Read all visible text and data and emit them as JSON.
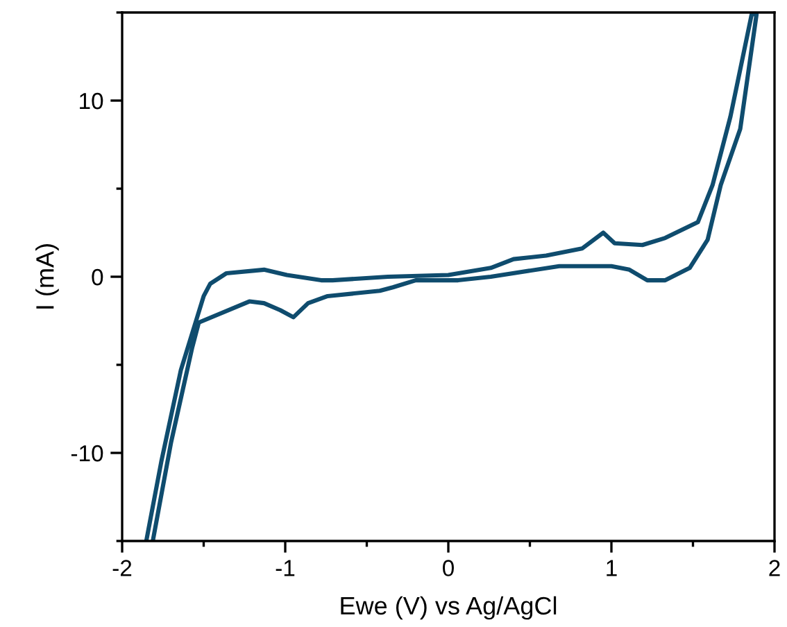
{
  "chart_data": {
    "type": "line",
    "xlabel": "Ewe (V) vs Ag/AgCl",
    "ylabel": "I (mA)",
    "xlim": [
      -2,
      2
    ],
    "ylim": [
      -15,
      15
    ],
    "xticks": [
      -2,
      {
        "value": -1.5,
        "label": null
      },
      -1,
      {
        "value": -0.5,
        "label": null
      },
      0,
      {
        "value": 0.5,
        "label": null
      },
      1,
      {
        "value": 1.5,
        "label": null
      },
      2
    ],
    "yticks": [
      {
        "value": -15,
        "label": null
      },
      -10,
      {
        "value": -5,
        "label": null
      },
      0,
      {
        "value": 5,
        "label": null
      },
      10,
      {
        "value": 15,
        "label": null
      }
    ],
    "grid": false,
    "marker": "none",
    "line_style": "solid",
    "series": [
      {
        "color": "#0f4c6e",
        "x": [
          -1.85,
          -1.76,
          -1.64,
          -1.5,
          -1.46,
          -1.36,
          -1.13,
          -0.99,
          -0.78,
          -0.71,
          -0.37,
          0.0,
          0.26,
          0.4,
          0.6,
          0.82,
          0.95,
          1.02,
          1.19,
          1.33,
          1.53,
          1.62,
          1.73,
          1.86,
          1.89,
          1.79,
          1.67,
          1.59,
          1.48,
          1.33,
          1.22,
          1.11,
          1.0,
          0.68,
          0.26,
          0.06,
          -0.2,
          -0.34,
          -0.42,
          -0.74,
          -0.86,
          -0.95,
          -1.03,
          -1.13,
          -1.22,
          -1.53,
          -1.57,
          -1.7,
          -1.81
        ],
        "values": [
          -14.9,
          -10.5,
          -5.3,
          -1.1,
          -0.4,
          0.2,
          0.4,
          0.1,
          -0.2,
          -0.2,
          0.0,
          0.1,
          0.5,
          1.0,
          1.2,
          1.6,
          2.5,
          1.9,
          1.8,
          2.2,
          3.1,
          5.2,
          9.1,
          14.9,
          14.9,
          8.4,
          5.2,
          2.1,
          0.5,
          -0.2,
          -0.2,
          0.4,
          0.6,
          0.6,
          0.0,
          -0.2,
          -0.2,
          -0.6,
          -0.8,
          -1.1,
          -1.5,
          -2.3,
          -1.9,
          -1.5,
          -1.4,
          -2.6,
          -4.0,
          -9.4,
          -14.9
        ]
      }
    ]
  }
}
